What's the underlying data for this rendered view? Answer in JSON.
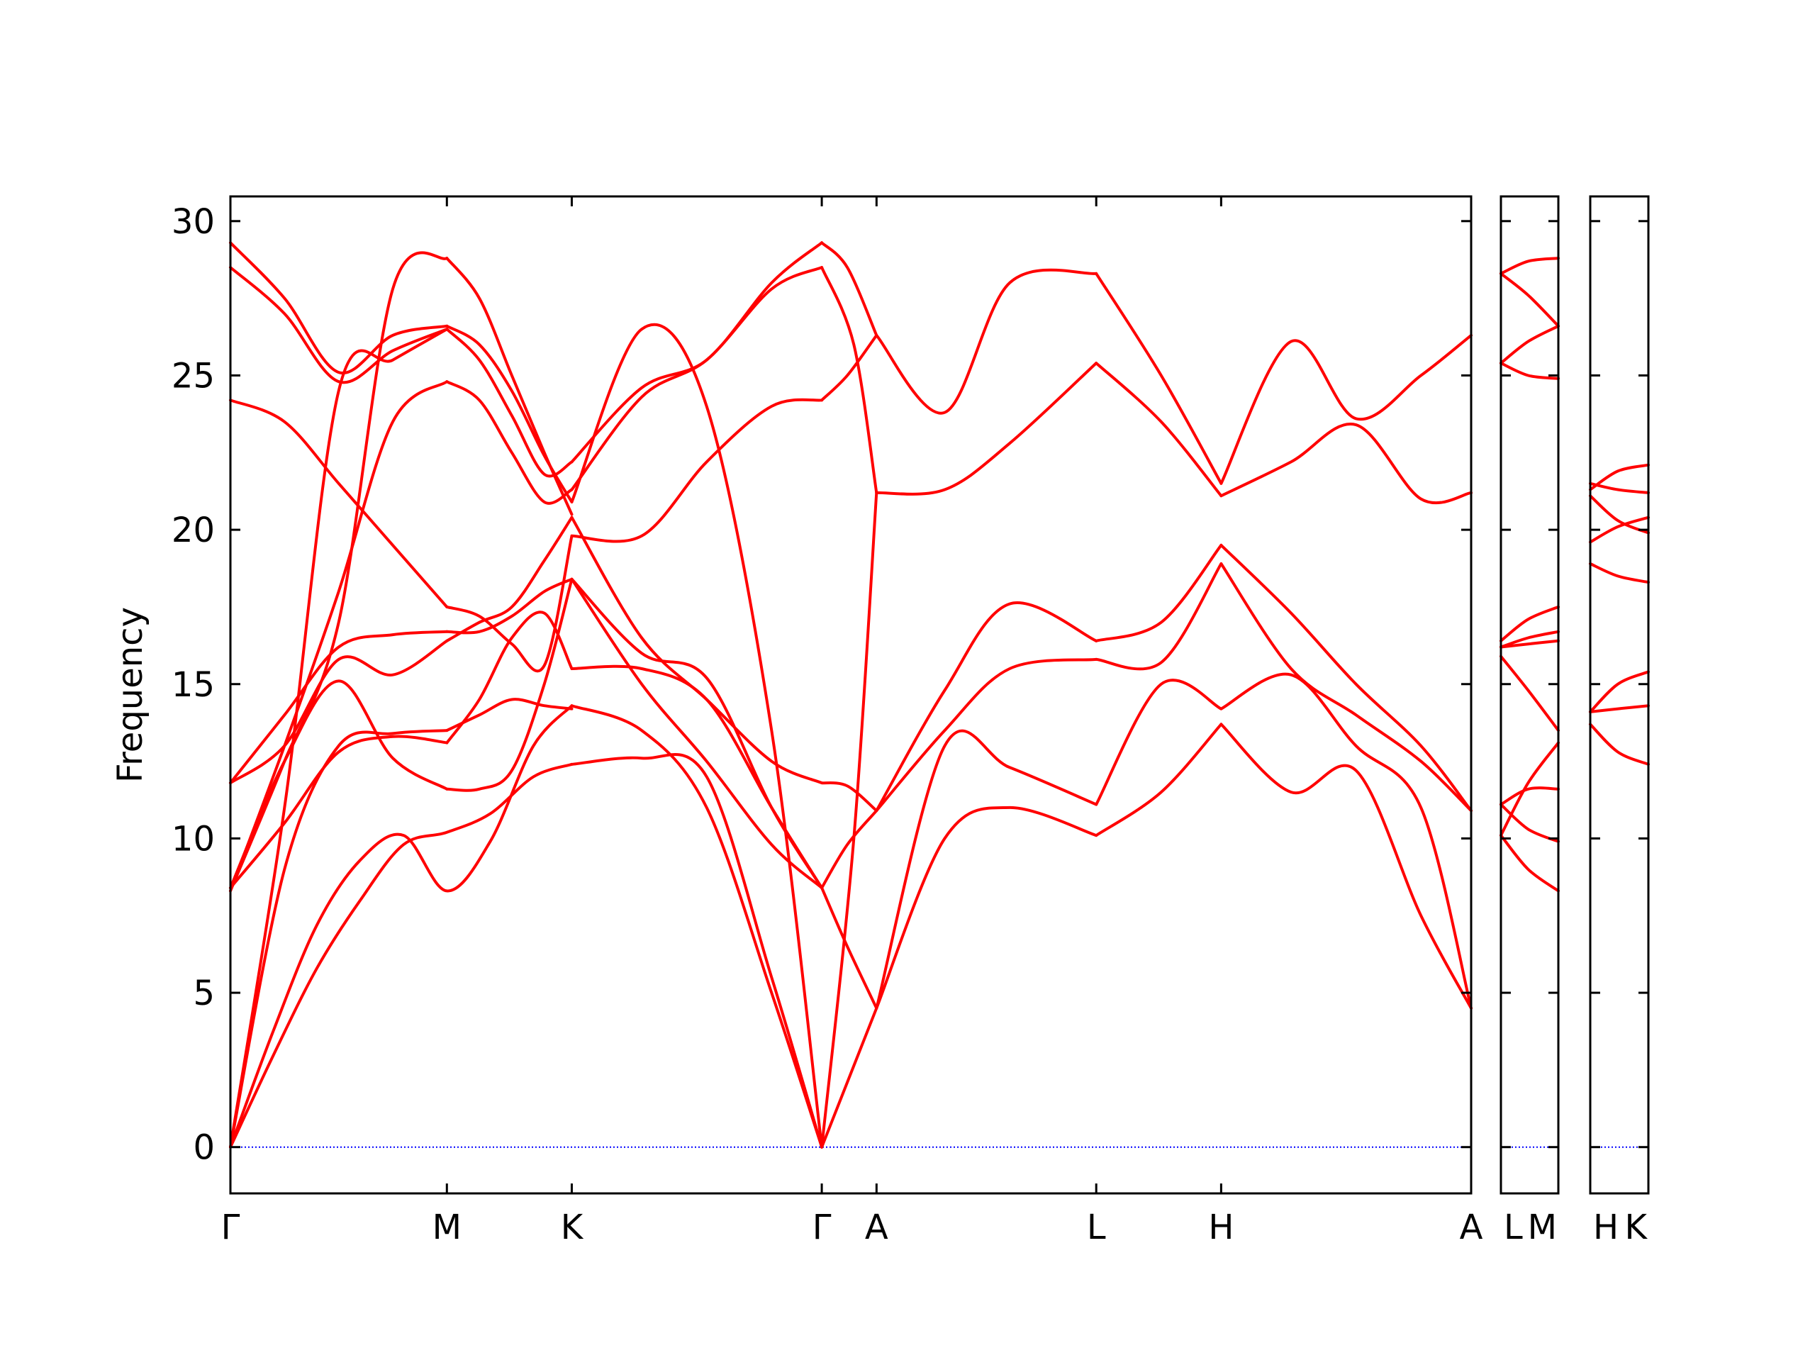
{
  "chart_data": {
    "type": "line",
    "title": "",
    "xlabel": "",
    "ylabel": "Frequency",
    "ylim": [
      -1.5,
      30.8
    ],
    "yticks": [
      0,
      5,
      10,
      15,
      20,
      25,
      30
    ],
    "grid": false,
    "legend": "none",
    "colors": {
      "bands": "#ff0000",
      "zero_line": "#0000ff",
      "axes": "#000000"
    },
    "panels": [
      {
        "path": [
          "Γ",
          "M",
          "K",
          "Γ",
          "A",
          "L",
          "H",
          "A"
        ],
        "kpos": [
          0,
          1.0,
          1.577,
          2.732,
          2.985,
          4.0,
          4.577,
          5.732
        ],
        "xlim": [
          0,
          5.732
        ]
      },
      {
        "path": [
          "L",
          "M"
        ],
        "kpos": [
          0,
          0.253
        ],
        "xlim": [
          0,
          0.253
        ]
      },
      {
        "path": [
          "H",
          "K"
        ],
        "kpos": [
          0,
          0.253
        ],
        "xlim": [
          0,
          0.253
        ]
      }
    ],
    "bands": [
      {
        "panel": 0,
        "x": [
          0,
          0.2,
          0.4,
          0.6,
          0.8,
          1.0,
          1.2,
          1.4,
          1.577
        ],
        "y": [
          0,
          3.0,
          5.8,
          8.0,
          9.8,
          10.2,
          10.8,
          12.0,
          12.4
        ]
      },
      {
        "panel": 0,
        "x": [
          0,
          0.2,
          0.4,
          0.6,
          0.8,
          1.0,
          1.2,
          1.4,
          1.577
        ],
        "y": [
          0,
          3.8,
          7.2,
          9.3,
          10.1,
          8.3,
          9.9,
          13.0,
          14.3
        ]
      },
      {
        "panel": 0,
        "x": [
          0,
          0.25,
          0.5,
          0.75,
          1.0
        ],
        "y": [
          0,
          9.0,
          13.0,
          13.4,
          13.5
        ]
      },
      {
        "panel": 0,
        "x": [
          0,
          0.25,
          0.5,
          0.75,
          1.0
        ],
        "y": [
          0,
          11.0,
          24.5,
          25.5,
          26.5
        ]
      },
      {
        "panel": 0,
        "x": [
          0,
          0.25,
          0.5,
          0.75,
          1.0
        ],
        "y": [
          8.4,
          10.5,
          12.8,
          13.3,
          13.1
        ]
      },
      {
        "panel": 0,
        "x": [
          0,
          0.25,
          0.5,
          0.75,
          1.0
        ],
        "y": [
          8.4,
          12.5,
          15.1,
          12.6,
          11.6
        ]
      },
      {
        "panel": 0,
        "x": [
          0,
          0.25,
          0.5,
          0.75,
          1.0
        ],
        "y": [
          11.8,
          13.0,
          15.8,
          15.3,
          16.4
        ]
      },
      {
        "panel": 0,
        "x": [
          0,
          0.25,
          0.5,
          0.75,
          1.0
        ],
        "y": [
          11.8,
          14.0,
          16.2,
          16.6,
          16.7
        ]
      },
      {
        "panel": 0,
        "x": [
          0,
          0.25,
          0.5,
          0.75,
          1.0
        ],
        "y": [
          24.2,
          23.5,
          21.5,
          19.5,
          17.5
        ]
      },
      {
        "panel": 0,
        "x": [
          0,
          0.25,
          0.5,
          0.75,
          1.0
        ],
        "y": [
          28.5,
          27.0,
          24.8,
          25.8,
          26.5
        ]
      },
      {
        "panel": 0,
        "x": [
          0,
          0.25,
          0.5,
          0.75,
          1.0
        ],
        "y": [
          29.3,
          27.5,
          25.1,
          26.3,
          26.6
        ]
      },
      {
        "panel": 0,
        "x": [
          0,
          0.25,
          0.5,
          0.75,
          1.0
        ],
        "y": [
          8.3,
          13.0,
          18.0,
          23.5,
          24.8
        ]
      },
      {
        "panel": 0,
        "x": [
          0,
          0.25,
          0.5,
          0.75,
          1.0
        ],
        "y": [
          8.3,
          12.5,
          17.0,
          27.8,
          28.8
        ]
      },
      {
        "panel": 0,
        "x": [
          1.0,
          1.15,
          1.3,
          1.45,
          1.577
        ],
        "y": [
          13.5,
          14.0,
          14.5,
          14.3,
          14.2
        ]
      },
      {
        "panel": 0,
        "x": [
          1.0,
          1.15,
          1.3,
          1.45,
          1.577
        ],
        "y": [
          11.6,
          11.6,
          12.2,
          15.0,
          18.4
        ]
      },
      {
        "panel": 0,
        "x": [
          1.0,
          1.15,
          1.3,
          1.45,
          1.577
        ],
        "y": [
          13.1,
          14.5,
          16.5,
          17.3,
          15.5
        ]
      },
      {
        "panel": 0,
        "x": [
          1.0,
          1.15,
          1.3,
          1.45,
          1.577
        ],
        "y": [
          16.4,
          17.0,
          17.5,
          19.0,
          20.4
        ]
      },
      {
        "panel": 0,
        "x": [
          1.0,
          1.15,
          1.3,
          1.45,
          1.577
        ],
        "y": [
          16.7,
          16.7,
          17.2,
          18.0,
          18.4
        ]
      },
      {
        "panel": 0,
        "x": [
          1.0,
          1.15,
          1.3,
          1.45,
          1.577
        ],
        "y": [
          17.5,
          17.2,
          16.3,
          15.6,
          19.8
        ]
      },
      {
        "panel": 0,
        "x": [
          1.0,
          1.15,
          1.3,
          1.45,
          1.577
        ],
        "y": [
          24.8,
          24.2,
          22.5,
          20.9,
          21.3
        ]
      },
      {
        "panel": 0,
        "x": [
          1.0,
          1.15,
          1.3,
          1.45,
          1.577
        ],
        "y": [
          26.5,
          25.5,
          23.7,
          21.8,
          22.2
        ]
      },
      {
        "panel": 0,
        "x": [
          1.0,
          1.15,
          1.3,
          1.45,
          1.577
        ],
        "y": [
          26.6,
          26.0,
          24.5,
          22.4,
          20.9
        ]
      },
      {
        "panel": 0,
        "x": [
          1.0,
          1.15,
          1.3,
          1.45,
          1.577
        ],
        "y": [
          28.8,
          27.5,
          25.0,
          22.5,
          20.5
        ]
      },
      {
        "panel": 0,
        "x": [
          1.577,
          1.9,
          2.2,
          2.5,
          2.732
        ],
        "y": [
          12.4,
          12.6,
          12.0,
          5.5,
          0
        ]
      },
      {
        "panel": 0,
        "x": [
          1.577,
          1.9,
          2.2,
          2.5,
          2.732
        ],
        "y": [
          14.3,
          13.5,
          11.0,
          5.0,
          0
        ]
      },
      {
        "panel": 0,
        "x": [
          1.577,
          1.9,
          2.2,
          2.5,
          2.732
        ],
        "y": [
          18.4,
          16.0,
          15.2,
          11.0,
          8.4
        ]
      },
      {
        "panel": 0,
        "x": [
          1.577,
          1.9,
          2.2,
          2.5,
          2.732
        ],
        "y": [
          15.5,
          15.5,
          14.5,
          11.0,
          8.4
        ]
      },
      {
        "panel": 0,
        "x": [
          1.577,
          1.9,
          2.2,
          2.5,
          2.732
        ],
        "y": [
          18.4,
          15.0,
          12.5,
          9.8,
          8.4
        ]
      },
      {
        "panel": 0,
        "x": [
          1.577,
          1.9,
          2.2,
          2.5,
          2.732
        ],
        "y": [
          20.4,
          16.5,
          14.5,
          12.5,
          11.8
        ]
      },
      {
        "panel": 0,
        "x": [
          1.577,
          1.9,
          2.2,
          2.5,
          2.732
        ],
        "y": [
          19.8,
          19.8,
          22.2,
          24.0,
          24.2
        ]
      },
      {
        "panel": 0,
        "x": [
          1.577,
          1.9,
          2.2,
          2.5,
          2.732
        ],
        "y": [
          21.3,
          24.3,
          25.5,
          27.8,
          28.5
        ]
      },
      {
        "panel": 0,
        "x": [
          1.577,
          1.9,
          2.2,
          2.5,
          2.732
        ],
        "y": [
          22.2,
          24.6,
          25.5,
          28.0,
          29.3
        ]
      },
      {
        "panel": 0,
        "x": [
          1.577,
          1.9,
          2.2,
          2.5,
          2.732
        ],
        "y": [
          20.9,
          26.5,
          24.0,
          13.5,
          0
        ]
      },
      {
        "panel": 0,
        "x": [
          2.732,
          2.985
        ],
        "y": [
          0,
          4.5
        ]
      },
      {
        "panel": 0,
        "x": [
          2.732,
          2.85,
          2.985
        ],
        "y": [
          8.4,
          6.5,
          4.5
        ]
      },
      {
        "panel": 0,
        "x": [
          2.732,
          2.85,
          2.985
        ],
        "y": [
          8.4,
          9.8,
          10.9
        ]
      },
      {
        "panel": 0,
        "x": [
          2.732,
          2.85,
          2.985
        ],
        "y": [
          11.8,
          11.7,
          10.9
        ]
      },
      {
        "panel": 0,
        "x": [
          2.732,
          2.85,
          2.985
        ],
        "y": [
          24.2,
          25.0,
          26.3
        ]
      },
      {
        "panel": 0,
        "x": [
          2.732,
          2.85,
          2.985
        ],
        "y": [
          29.3,
          28.5,
          26.3
        ]
      },
      {
        "panel": 0,
        "x": [
          2.732,
          2.88,
          2.985
        ],
        "y": [
          0,
          10.0,
          21.2
        ]
      },
      {
        "panel": 0,
        "x": [
          2.732,
          2.88,
          2.985
        ],
        "y": [
          28.5,
          26.0,
          21.2
        ]
      },
      {
        "panel": 0,
        "x": [
          2.985,
          3.3,
          3.6,
          4.0
        ],
        "y": [
          4.5,
          10.0,
          11.0,
          10.1
        ]
      },
      {
        "panel": 0,
        "x": [
          2.985,
          3.3,
          3.6,
          4.0
        ],
        "y": [
          4.5,
          13.0,
          12.3,
          11.1
        ]
      },
      {
        "panel": 0,
        "x": [
          2.985,
          3.3,
          3.6,
          4.0
        ],
        "y": [
          10.9,
          13.5,
          15.5,
          15.8
        ]
      },
      {
        "panel": 0,
        "x": [
          2.985,
          3.3,
          3.6,
          4.0
        ],
        "y": [
          10.9,
          14.8,
          17.6,
          16.4
        ]
      },
      {
        "panel": 0,
        "x": [
          2.985,
          3.3,
          3.6,
          4.0
        ],
        "y": [
          21.2,
          21.3,
          22.8,
          25.4
        ]
      },
      {
        "panel": 0,
        "x": [
          2.985,
          3.3,
          3.6,
          4.0
        ],
        "y": [
          26.3,
          23.8,
          28.0,
          28.3
        ]
      },
      {
        "panel": 0,
        "x": [
          4.0,
          4.3,
          4.577
        ],
        "y": [
          10.1,
          11.5,
          13.7
        ]
      },
      {
        "panel": 0,
        "x": [
          4.0,
          4.3,
          4.577
        ],
        "y": [
          11.1,
          15.0,
          14.2
        ]
      },
      {
        "panel": 0,
        "x": [
          4.0,
          4.3,
          4.577
        ],
        "y": [
          15.8,
          15.7,
          18.9
        ]
      },
      {
        "panel": 0,
        "x": [
          4.0,
          4.3,
          4.577
        ],
        "y": [
          16.4,
          17.0,
          19.5
        ]
      },
      {
        "panel": 0,
        "x": [
          4.0,
          4.3,
          4.577
        ],
        "y": [
          25.4,
          23.5,
          21.1
        ]
      },
      {
        "panel": 0,
        "x": [
          4.0,
          4.3,
          4.577
        ],
        "y": [
          28.3,
          25.0,
          21.5
        ]
      },
      {
        "panel": 0,
        "x": [
          4.577,
          4.9,
          5.2,
          5.5,
          5.732
        ],
        "y": [
          13.7,
          11.5,
          12.2,
          7.5,
          4.5
        ]
      },
      {
        "panel": 0,
        "x": [
          4.577,
          4.9,
          5.2,
          5.5,
          5.732
        ],
        "y": [
          14.2,
          15.3,
          13.0,
          11.0,
          4.5
        ]
      },
      {
        "panel": 0,
        "x": [
          4.577,
          4.9,
          5.2,
          5.5,
          5.732
        ],
        "y": [
          18.9,
          15.5,
          14.0,
          12.5,
          10.9
        ]
      },
      {
        "panel": 0,
        "x": [
          4.577,
          4.9,
          5.2,
          5.5,
          5.732
        ],
        "y": [
          19.5,
          17.3,
          15.0,
          13.0,
          10.9
        ]
      },
      {
        "panel": 0,
        "x": [
          4.577,
          4.9,
          5.2,
          5.5,
          5.732
        ],
        "y": [
          21.1,
          22.2,
          23.4,
          21.0,
          21.2
        ]
      },
      {
        "panel": 0,
        "x": [
          4.577,
          4.9,
          5.2,
          5.5,
          5.732
        ],
        "y": [
          21.5,
          26.1,
          23.6,
          25.0,
          26.3
        ]
      },
      {
        "panel": 1,
        "x": [
          0,
          0.12,
          0.253
        ],
        "y": [
          28.3,
          27.6,
          26.6
        ]
      },
      {
        "panel": 1,
        "x": [
          0,
          0.12,
          0.253
        ],
        "y": [
          25.4,
          26.1,
          26.6
        ]
      },
      {
        "panel": 1,
        "x": [
          0,
          0.12,
          0.253
        ],
        "y": [
          28.3,
          28.7,
          28.8
        ]
      },
      {
        "panel": 1,
        "x": [
          0,
          0.12,
          0.253
        ],
        "y": [
          25.4,
          25.0,
          24.9
        ]
      },
      {
        "panel": 1,
        "x": [
          0,
          0.12,
          0.253
        ],
        "y": [
          16.4,
          17.1,
          17.5
        ]
      },
      {
        "panel": 1,
        "x": [
          0,
          0.12,
          0.253
        ],
        "y": [
          16.2,
          16.5,
          16.7
        ]
      },
      {
        "panel": 1,
        "x": [
          0,
          0.12,
          0.253
        ],
        "y": [
          16.2,
          16.3,
          16.4
        ]
      },
      {
        "panel": 1,
        "x": [
          0,
          0.12,
          0.253
        ],
        "y": [
          15.9,
          14.8,
          13.5
        ]
      },
      {
        "panel": 1,
        "x": [
          0,
          0.12,
          0.253
        ],
        "y": [
          10.1,
          11.8,
          13.1
        ]
      },
      {
        "panel": 1,
        "x": [
          0,
          0.12,
          0.253
        ],
        "y": [
          11.1,
          11.6,
          11.6
        ]
      },
      {
        "panel": 1,
        "x": [
          0,
          0.12,
          0.253
        ],
        "y": [
          11.1,
          10.3,
          9.9
        ]
      },
      {
        "panel": 1,
        "x": [
          0,
          0.12,
          0.253
        ],
        "y": [
          10.1,
          9.0,
          8.3
        ]
      },
      {
        "panel": 2,
        "x": [
          0,
          0.12,
          0.253
        ],
        "y": [
          21.3,
          21.9,
          22.1
        ]
      },
      {
        "panel": 2,
        "x": [
          0,
          0.12,
          0.253
        ],
        "y": [
          21.5,
          21.3,
          21.2
        ]
      },
      {
        "panel": 2,
        "x": [
          0,
          0.12,
          0.253
        ],
        "y": [
          21.1,
          20.3,
          19.9
        ]
      },
      {
        "panel": 2,
        "x": [
          0,
          0.12,
          0.253
        ],
        "y": [
          19.6,
          20.1,
          20.4
        ]
      },
      {
        "panel": 2,
        "x": [
          0,
          0.12,
          0.253
        ],
        "y": [
          18.9,
          18.5,
          18.3
        ]
      },
      {
        "panel": 2,
        "x": [
          0,
          0.12,
          0.253
        ],
        "y": [
          14.1,
          15.0,
          15.4
        ]
      },
      {
        "panel": 2,
        "x": [
          0,
          0.12,
          0.253
        ],
        "y": [
          14.1,
          14.2,
          14.3
        ]
      },
      {
        "panel": 2,
        "x": [
          0,
          0.12,
          0.253
        ],
        "y": [
          13.7,
          12.8,
          12.4
        ]
      }
    ]
  }
}
